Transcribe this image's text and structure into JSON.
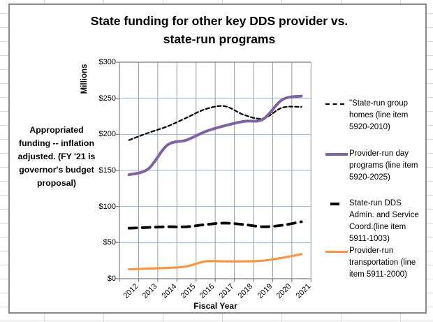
{
  "chart": {
    "title": "State funding for other key DDS provider vs.\nstate-run programs",
    "annotation": "Appropriated\nfunding -- inflation\nadjusted. (FY '21 is\ngovernor's budget\nproposal)",
    "y_axis_title": "Millions",
    "x_axis_title": "Fiscal Year"
  },
  "chart_data": {
    "type": "line",
    "title": "State funding for other key DDS provider vs. state-run programs",
    "xlabel": "Fiscal Year",
    "ylabel": "Millions",
    "categories": [
      "2012",
      "2013",
      "2014",
      "2015",
      "2016",
      "2017",
      "2018",
      "2019",
      "2020",
      "2021"
    ],
    "ylim": [
      0,
      300
    ],
    "ytick_step": 50,
    "ytick_labels": [
      "$0",
      "$50",
      "$100",
      "$150",
      "$200",
      "$250",
      "$300"
    ],
    "grid": true,
    "smoothed_lines": true,
    "legend_position": "right",
    "series": [
      {
        "name": "\"State-run group homes (line item 5920-2010)",
        "values": [
          192,
          202,
          211,
          223,
          235,
          239,
          227,
          222,
          237,
          238
        ],
        "color": "#000000",
        "line_style": "dash-thin"
      },
      {
        "name": "Provider-run day programs (line item 5920-2025)",
        "values": [
          144,
          152,
          185,
          192,
          204,
          212,
          218,
          221,
          248,
          253
        ],
        "color": "#8064A2",
        "line_style": "solid-thick"
      },
      {
        "name": "State-run DDS Admin. and Service Coord.(line item 5911-1003)",
        "values": [
          70,
          71,
          72,
          72,
          75,
          77,
          75,
          72,
          74,
          79
        ],
        "color": "#000000",
        "line_style": "dash-thick"
      },
      {
        "name": "Provider-run transportation (line item 5911-2000)",
        "values": [
          13,
          14,
          15,
          17,
          24,
          24,
          24,
          25,
          29,
          34
        ],
        "color": "#F79646",
        "line_style": "solid-thin"
      }
    ],
    "colors": {
      "h_gridline": "#95B3D7",
      "v_gridline": "#9C9C9C",
      "axis": "#7F7F7F",
      "series_purple": "#8064A2",
      "series_orange": "#F79646"
    }
  }
}
